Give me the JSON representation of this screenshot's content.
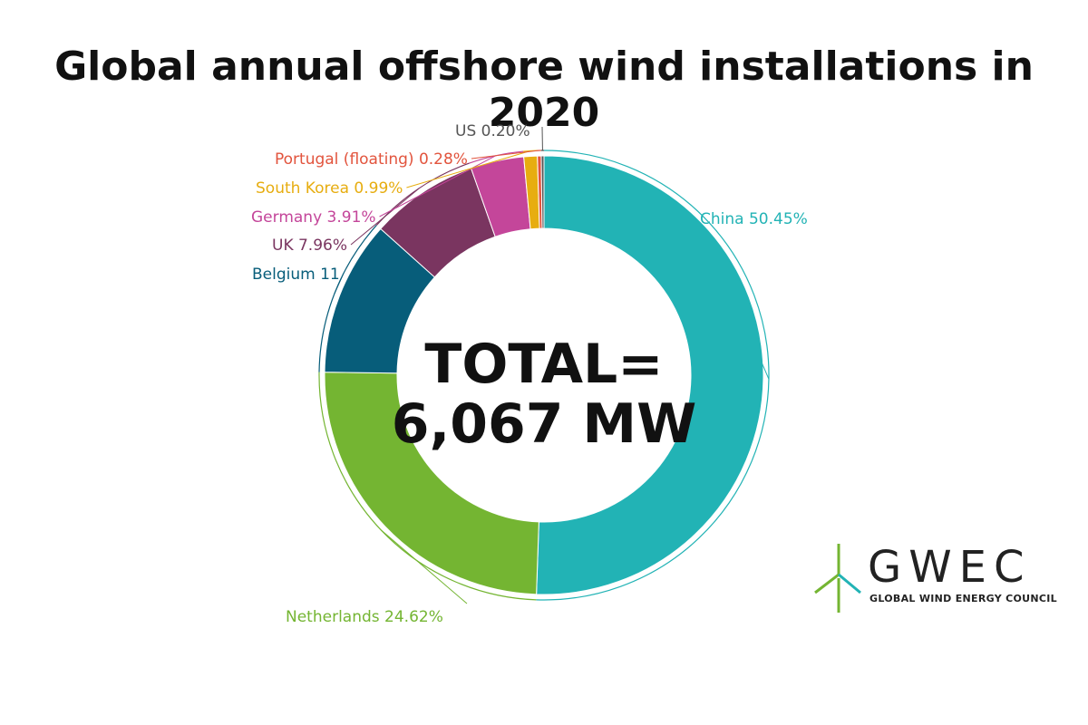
{
  "chart_data": {
    "type": "pie",
    "title": "Global annual offshore wind installations in 2020",
    "center_label": [
      "TOTAL=",
      "6,067 MW"
    ],
    "slices": [
      {
        "name": "China",
        "label": "China 50.45%",
        "value": 50.45,
        "color": "#22b3b5"
      },
      {
        "name": "Netherlands",
        "label": "Netherlands 24.62%",
        "value": 24.62,
        "color": "#74b532"
      },
      {
        "name": "Belgium",
        "label": "Belgium 11",
        "value": 11.39,
        "color": "#075d7a"
      },
      {
        "name": "UK",
        "label": "UK 7.96%",
        "value": 7.96,
        "color": "#7a3560"
      },
      {
        "name": "Germany",
        "label": "Germany 3.91%",
        "value": 3.91,
        "color": "#c4469a"
      },
      {
        "name": "South Korea",
        "label": "South Korea 0.99%",
        "value": 0.99,
        "color": "#e7ad10"
      },
      {
        "name": "Portugal (floating)",
        "label": "Portugal (floating) 0.28%",
        "value": 0.28,
        "color": "#e2543d"
      },
      {
        "name": "US",
        "label": "US 0.20%",
        "value": 0.2,
        "color": "#555555"
      }
    ],
    "legend": "none"
  },
  "logo": {
    "word": "GWEC",
    "tagline": "GLOBAL WIND ENERGY COUNCIL",
    "mark_color": "#74b532",
    "accent_color": "#22b3b5"
  }
}
